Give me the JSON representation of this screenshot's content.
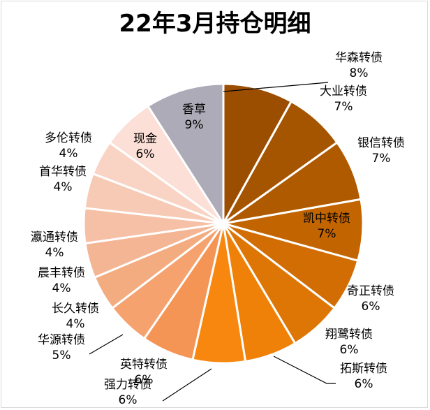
{
  "chart_data": {
    "type": "pie",
    "title": "22年3月持仓明细",
    "slices": [
      {
        "name": "华森转债",
        "value": 8,
        "label": "8%",
        "color": "#9c4e00"
      },
      {
        "name": "大业转债",
        "value": 7,
        "label": "7%",
        "color": "#a55400"
      },
      {
        "name": "银信转债",
        "value": 7,
        "label": "7%",
        "color": "#b05a00"
      },
      {
        "name": "凯中转债",
        "value": 7,
        "label": "7%",
        "color": "#c26500"
      },
      {
        "name": "奇正转债",
        "value": 6,
        "label": "6%",
        "color": "#d16d03"
      },
      {
        "name": "翔鹭转债",
        "value": 6,
        "label": "6%",
        "color": "#de7605"
      },
      {
        "name": "拓斯转债",
        "value": 6,
        "label": "6%",
        "color": "#ef8008"
      },
      {
        "name": "强力转债",
        "value": 6,
        "label": "6%",
        "color": "#f7870f"
      },
      {
        "name": "英特转债",
        "value": 6,
        "label": "6%",
        "color": "#f49556"
      },
      {
        "name": "华源转债",
        "value": 5,
        "label": "5%",
        "color": "#f5a26f"
      },
      {
        "name": "长久转债",
        "value": 4,
        "label": "4%",
        "color": "#f3ab80"
      },
      {
        "name": "晨丰转债",
        "value": 4,
        "label": "4%",
        "color": "#f4b594"
      },
      {
        "name": "瀛通转债",
        "value": 4,
        "label": "4%",
        "color": "#f6c0a6"
      },
      {
        "name": "首华转债",
        "value": 4,
        "label": "4%",
        "color": "#f7cab5"
      },
      {
        "name": "多伦转债",
        "value": 4,
        "label": "4%",
        "color": "#f9d4c4"
      },
      {
        "name": "现金",
        "value": 6,
        "label": "6%",
        "color": "#fcdfd6"
      },
      {
        "name": "香草",
        "value": 9,
        "label": "9%",
        "color": "#aeabb8"
      }
    ]
  }
}
